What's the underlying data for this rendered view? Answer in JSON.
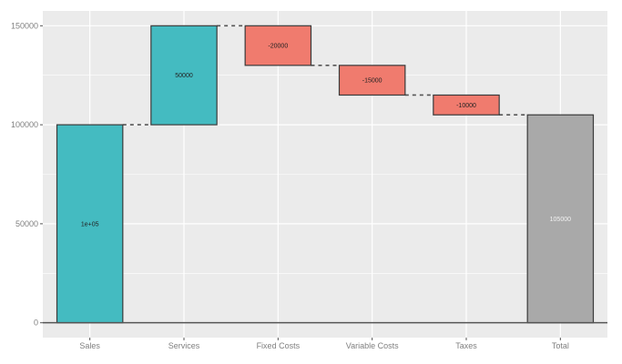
{
  "chart_data": {
    "type": "waterfall",
    "title": "",
    "xlabel": "",
    "ylabel": "",
    "categories": [
      "Sales",
      "Services",
      "Fixed Costs",
      "Variable Costs",
      "Taxes",
      "Total"
    ],
    "values": [
      100000,
      50000,
      -20000,
      -15000,
      -10000,
      105000
    ],
    "bar_labels": [
      "1e+05",
      "50000",
      "-20000",
      "-15000",
      "-10000",
      "105000"
    ],
    "start": [
      0,
      100000,
      150000,
      130000,
      115000,
      0
    ],
    "end": [
      100000,
      150000,
      130000,
      115000,
      105000,
      105000
    ],
    "bar_type": [
      "increase",
      "increase",
      "decrease",
      "decrease",
      "decrease",
      "total"
    ],
    "ylim": [
      -7500,
      157500
    ],
    "yticks": [
      0,
      50000,
      100000,
      150000
    ],
    "ytick_labels": [
      "0",
      "50000",
      "100000",
      "150000"
    ],
    "grid": true,
    "legend": "none",
    "connector_style": "dashed"
  },
  "colors": {
    "increase": "#44BBC1",
    "decrease": "#F07B6E",
    "total": "#A9A9A9",
    "panel_bg": "#EBEBEB",
    "grid": "#FFFFFF",
    "bar_border": "#3a3a3a"
  }
}
